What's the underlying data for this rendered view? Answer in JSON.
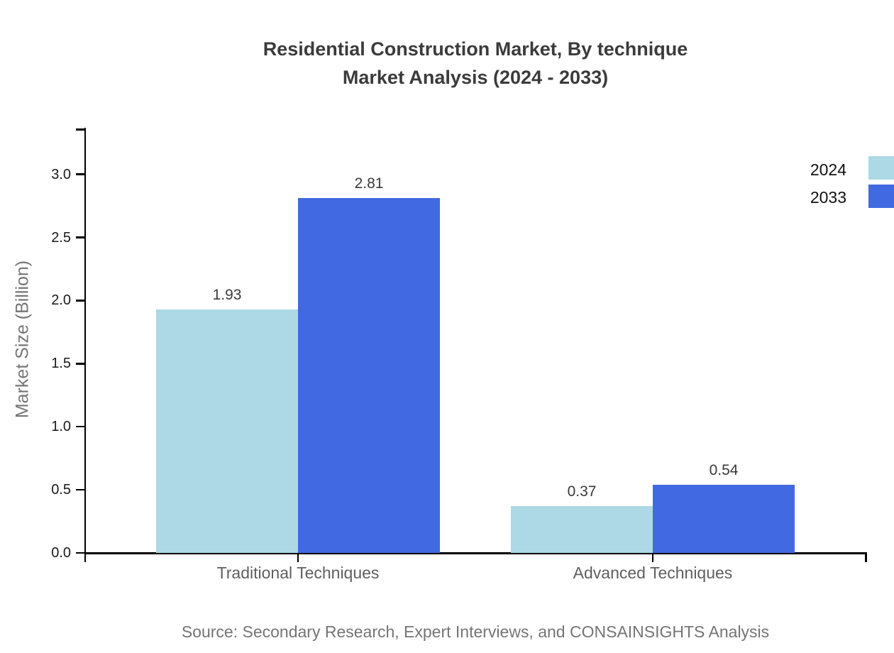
{
  "title": {
    "line1": "Residential Construction Market, By technique",
    "line2": "Market Analysis (2024 - 2033)"
  },
  "y_axis_label": "Market Size (Billion)",
  "source": "Source: Secondary Research, Expert Interviews, and CONSAINSIGHTS Analysis",
  "legend": {
    "items": [
      {
        "label": "2024",
        "color": "#ADD8E6"
      },
      {
        "label": "2033",
        "color": "#4169E1"
      }
    ]
  },
  "colors": {
    "series_2024": "#ADD8E6",
    "series_2033": "#4169E1",
    "title_text": "#3b3b3b",
    "axis": "#000000",
    "tick_label": "#1a1a1a",
    "category_label": "#5f5f5f",
    "value_label": "#3a3a3a",
    "muted_text": "#757575",
    "background": "#ffffff"
  },
  "chart_data": {
    "type": "bar",
    "title": "Residential Construction Market, By technique Market Analysis (2024 - 2033)",
    "categories": [
      "Traditional Techniques",
      "Advanced Techniques"
    ],
    "series": [
      {
        "name": "2024",
        "color": "#ADD8E6",
        "values": [
          1.93,
          0.37
        ]
      },
      {
        "name": "2033",
        "color": "#4169E1",
        "values": [
          2.81,
          0.54
        ]
      }
    ],
    "bar_value_labels": [
      [
        "1.93",
        "0.37"
      ],
      [
        "2.81",
        "0.54"
      ]
    ],
    "xlabel": "",
    "ylabel": "Market Size (Billion)",
    "ylim": [
      0,
      3.35
    ],
    "y_ticks": [
      0.0,
      0.5,
      1.0,
      1.5,
      2.0,
      2.5,
      3.0
    ],
    "y_tick_labels": [
      "0.0",
      "0.5",
      "1.0",
      "1.5",
      "2.0",
      "2.5",
      "3.0"
    ],
    "grid": false,
    "legend_position": "top-right"
  }
}
